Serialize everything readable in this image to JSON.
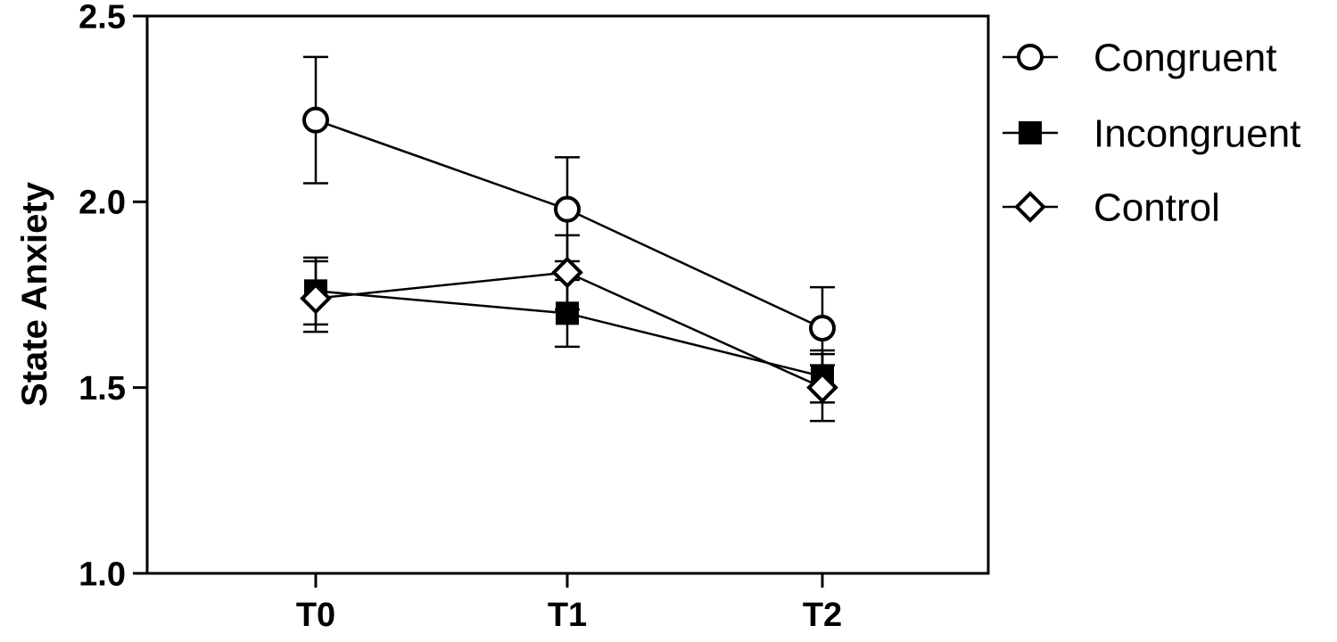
{
  "chart_data": {
    "type": "line",
    "categories": [
      "T0",
      "T1",
      "T2"
    ],
    "ylabel": "State Anxiety",
    "xlabel": "",
    "ylim": [
      1.0,
      2.5
    ],
    "yticks": [
      "1.0",
      "1.5",
      "2.0",
      "2.5"
    ],
    "grid": false,
    "legend_position": "right",
    "series": [
      {
        "name": "Congruent",
        "marker": "open-circle",
        "values": [
          2.22,
          1.98,
          1.66
        ],
        "err_low": [
          2.05,
          1.84,
          1.56
        ],
        "err_high": [
          2.39,
          2.12,
          1.77
        ]
      },
      {
        "name": "Incongruent",
        "marker": "filled-square",
        "values": [
          1.76,
          1.7,
          1.53
        ],
        "err_low": [
          1.67,
          1.61,
          1.46
        ],
        "err_high": [
          1.85,
          1.79,
          1.6
        ]
      },
      {
        "name": "Control",
        "marker": "open-diamond",
        "values": [
          1.74,
          1.81,
          1.5
        ],
        "err_low": [
          1.65,
          1.71,
          1.41
        ],
        "err_high": [
          1.84,
          1.91,
          1.59
        ]
      }
    ]
  }
}
